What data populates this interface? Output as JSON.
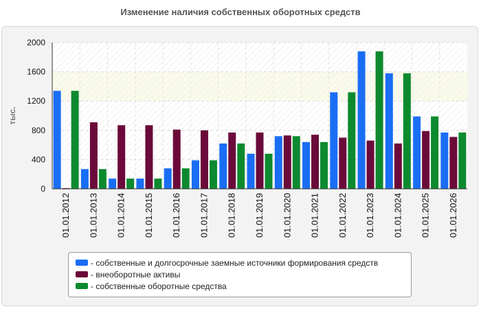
{
  "chart_data": {
    "type": "bar",
    "title": "Изменение наличия собственных оборотных средств",
    "ylabel": "тыс.",
    "xlabel": "",
    "ylim": [
      0,
      2000
    ],
    "yticks": [
      0,
      400,
      800,
      1200,
      1600,
      2000
    ],
    "grid": true,
    "legend_position": "bottom",
    "categories": [
      "01.01.2012",
      "01.01.2013",
      "01.01.2014",
      "01.01.2015",
      "01.01.2016",
      "01.01.2017",
      "01.01.2018",
      "01.01.2019",
      "01.01.2020",
      "01.01.2021",
      "01.01.2022",
      "01.01.2023",
      "01.01.2024",
      "01.01.2025",
      "01.01.2026"
    ],
    "series": [
      {
        "name": "- собственные и долгосрочные заемные источники формирования средств",
        "color": "#1a6ef5",
        "values": [
          1340,
          270,
          140,
          140,
          280,
          390,
          620,
          480,
          720,
          640,
          1320,
          1880,
          1580,
          990,
          770
        ]
      },
      {
        "name": "- внеоборотные активы",
        "color": "#6b0a3a",
        "values": [
          10,
          910,
          870,
          870,
          810,
          800,
          770,
          770,
          730,
          740,
          700,
          660,
          620,
          790,
          710
        ]
      },
      {
        "name": "- собственные оборотные средства",
        "color": "#0d8a2f",
        "values": [
          1340,
          270,
          140,
          140,
          280,
          390,
          620,
          480,
          720,
          640,
          1320,
          1880,
          1580,
          990,
          770
        ]
      }
    ]
  }
}
